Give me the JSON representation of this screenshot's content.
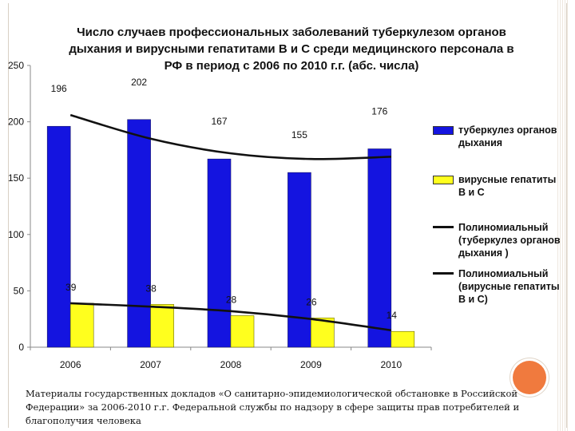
{
  "chart_data": {
    "type": "bar",
    "title": "Число случаев профессиональных заболеваний туберкулезом органов дыхания  и вирусными гепатитами В и С среди медицинского персонала в РФ в период с 2006 по 2010 г.г. (абс. числа)",
    "categories": [
      "2006",
      "2007",
      "2008",
      "2009",
      "2010"
    ],
    "ylim": [
      0,
      250
    ],
    "yticks": [
      "0",
      "50",
      "100",
      "150",
      "200",
      "250"
    ],
    "series": [
      {
        "name": "туберкулез органов дыхания",
        "values": [
          196,
          202,
          167,
          155,
          176
        ],
        "labels": [
          "196",
          "202",
          "167",
          "155",
          "176"
        ],
        "color": "#1414e0"
      },
      {
        "name": "вирусные гепатиты В и С",
        "values": [
          39,
          38,
          28,
          26,
          14
        ],
        "labels": [
          "39",
          "38",
          "28",
          "26",
          "14"
        ],
        "color": "#ffff1e"
      }
    ],
    "trendlines": [
      {
        "name": "Полиномиальный (туберкулез органов дыхания )",
        "type": "polynomial",
        "values": [
          206,
          185,
          172,
          167,
          169
        ]
      },
      {
        "name": "Полиномиальный (вирусные гепатиты В и С)",
        "type": "polynomial",
        "values": [
          39,
          36,
          32,
          25,
          15
        ]
      }
    ]
  },
  "legend": [
    {
      "kind": "swatch",
      "color": "#1414e0",
      "text": "туберкулез органов дыхания"
    },
    {
      "kind": "swatch",
      "color": "#ffff1e",
      "text": "вирусные гепатиты В и С"
    },
    {
      "kind": "line",
      "text": "Полиномиальный (туберкулез органов дыхания )"
    },
    {
      "kind": "line",
      "text": "Полиномиальный (вирусные гепатиты В и С)"
    }
  ],
  "source": "Материалы государственных докладов «О санитарно-эпидемиологической обстановке в Российской Федерации» за 2006-2010 г.г. Федеральной службы по надзору в сфере защиты прав потребителей и благополучия человека",
  "colors": {
    "accent_circle": "#f07a3e",
    "trend_line": "#111111"
  }
}
